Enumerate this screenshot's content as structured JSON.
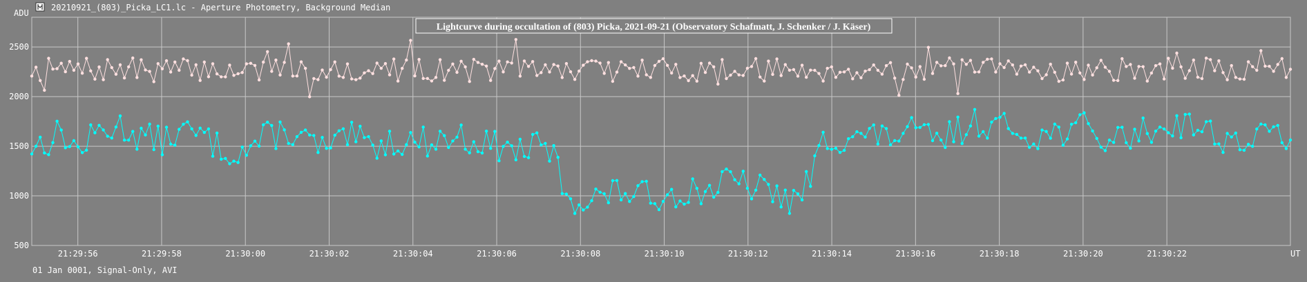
{
  "window": {
    "title": "20210921_(803)_Picka_LC1.lc - Aperture Photometry, Background Median",
    "icon": "tangra-app-icon"
  },
  "footer": {
    "status": "01 Jan 0001, Signal-Only, AVI"
  },
  "colors": {
    "background": "#808080",
    "grid": "#c8c8c8",
    "target_series": "#00ffff",
    "comparison_series": "#ffe0e0"
  },
  "chart_data": {
    "type": "line",
    "title": "Lightcurve during occultation of (803) Picka, 2021-09-21 (Observatory Schafmatt, J. Schenker / J. Käser)",
    "ylabel": "ADU",
    "xlabel": "UT",
    "ylim": [
      500,
      2800
    ],
    "yticks": [
      500,
      1000,
      1500,
      2000,
      2500
    ],
    "xlim": [
      54.9,
      84.95
    ],
    "xticks": [
      {
        "t": 56,
        "label": "21:29:56"
      },
      {
        "t": 58,
        "label": "21:29:58"
      },
      {
        "t": 60,
        "label": "21:30:00"
      },
      {
        "t": 62,
        "label": "21:30:02"
      },
      {
        "t": 64,
        "label": "21:30:04"
      },
      {
        "t": 66,
        "label": "21:30:06"
      },
      {
        "t": 68,
        "label": "21:30:08"
      },
      {
        "t": 70,
        "label": "21:30:10"
      },
      {
        "t": 72,
        "label": "21:30:12"
      },
      {
        "t": 74,
        "label": "21:30:14"
      },
      {
        "t": 76,
        "label": "21:30:16"
      },
      {
        "t": 78,
        "label": "21:30:18"
      },
      {
        "t": 80,
        "label": "21:30:20"
      },
      {
        "t": 82,
        "label": "21:30:22"
      }
    ],
    "x_unit_note": "seconds after 21:29:00 UT",
    "grid": true,
    "series": [
      {
        "role": "comparison",
        "color": "#ffe0e0",
        "x_start": 54.9,
        "x_end": 84.95,
        "count": 300,
        "mean": 2270,
        "amplitude": 120,
        "seed": 7
      },
      {
        "role": "target",
        "color": "#00ffff",
        "x_start": 54.9,
        "x_end": 84.95,
        "count": 300,
        "seed": 13,
        "knots": [
          [
            54.9,
            1500
          ],
          [
            55.3,
            1550
          ],
          [
            55.6,
            1650
          ],
          [
            56.0,
            1450
          ],
          [
            56.5,
            1650
          ],
          [
            57.0,
            1700
          ],
          [
            57.5,
            1600
          ],
          [
            58.0,
            1550
          ],
          [
            58.5,
            1650
          ],
          [
            59.0,
            1600
          ],
          [
            59.5,
            1450
          ],
          [
            60.0,
            1450
          ],
          [
            60.5,
            1600
          ],
          [
            61.0,
            1650
          ],
          [
            61.5,
            1550
          ],
          [
            62.0,
            1450
          ],
          [
            62.5,
            1600
          ],
          [
            63.0,
            1500
          ],
          [
            63.5,
            1550
          ],
          [
            64.0,
            1550
          ],
          [
            64.5,
            1550
          ],
          [
            65.0,
            1600
          ],
          [
            65.5,
            1550
          ],
          [
            66.0,
            1500
          ],
          [
            66.5,
            1450
          ],
          [
            67.0,
            1500
          ],
          [
            67.3,
            1450
          ],
          [
            67.45,
            1300
          ],
          [
            67.6,
            1050
          ],
          [
            68.0,
            930
          ],
          [
            68.5,
            1000
          ],
          [
            69.0,
            1050
          ],
          [
            69.5,
            1000
          ],
          [
            70.0,
            1000
          ],
          [
            70.5,
            1050
          ],
          [
            71.0,
            1050
          ],
          [
            71.5,
            1150
          ],
          [
            72.0,
            1100
          ],
          [
            72.5,
            1050
          ],
          [
            73.0,
            950
          ],
          [
            73.2,
            950
          ],
          [
            73.5,
            1200
          ],
          [
            73.8,
            1550
          ],
          [
            74.5,
            1600
          ],
          [
            75.0,
            1600
          ],
          [
            75.5,
            1600
          ],
          [
            76.0,
            1650
          ],
          [
            76.5,
            1550
          ],
          [
            77.0,
            1650
          ],
          [
            77.5,
            1750
          ],
          [
            78.0,
            1700
          ],
          [
            78.5,
            1650
          ],
          [
            79.0,
            1600
          ],
          [
            79.5,
            1650
          ],
          [
            80.0,
            1700
          ],
          [
            80.5,
            1550
          ],
          [
            81.0,
            1600
          ],
          [
            81.5,
            1650
          ],
          [
            82.0,
            1700
          ],
          [
            82.5,
            1750
          ],
          [
            83.0,
            1650
          ],
          [
            83.5,
            1550
          ],
          [
            84.0,
            1550
          ],
          [
            84.5,
            1650
          ],
          [
            84.95,
            1600
          ]
        ],
        "noise": 150
      }
    ]
  }
}
